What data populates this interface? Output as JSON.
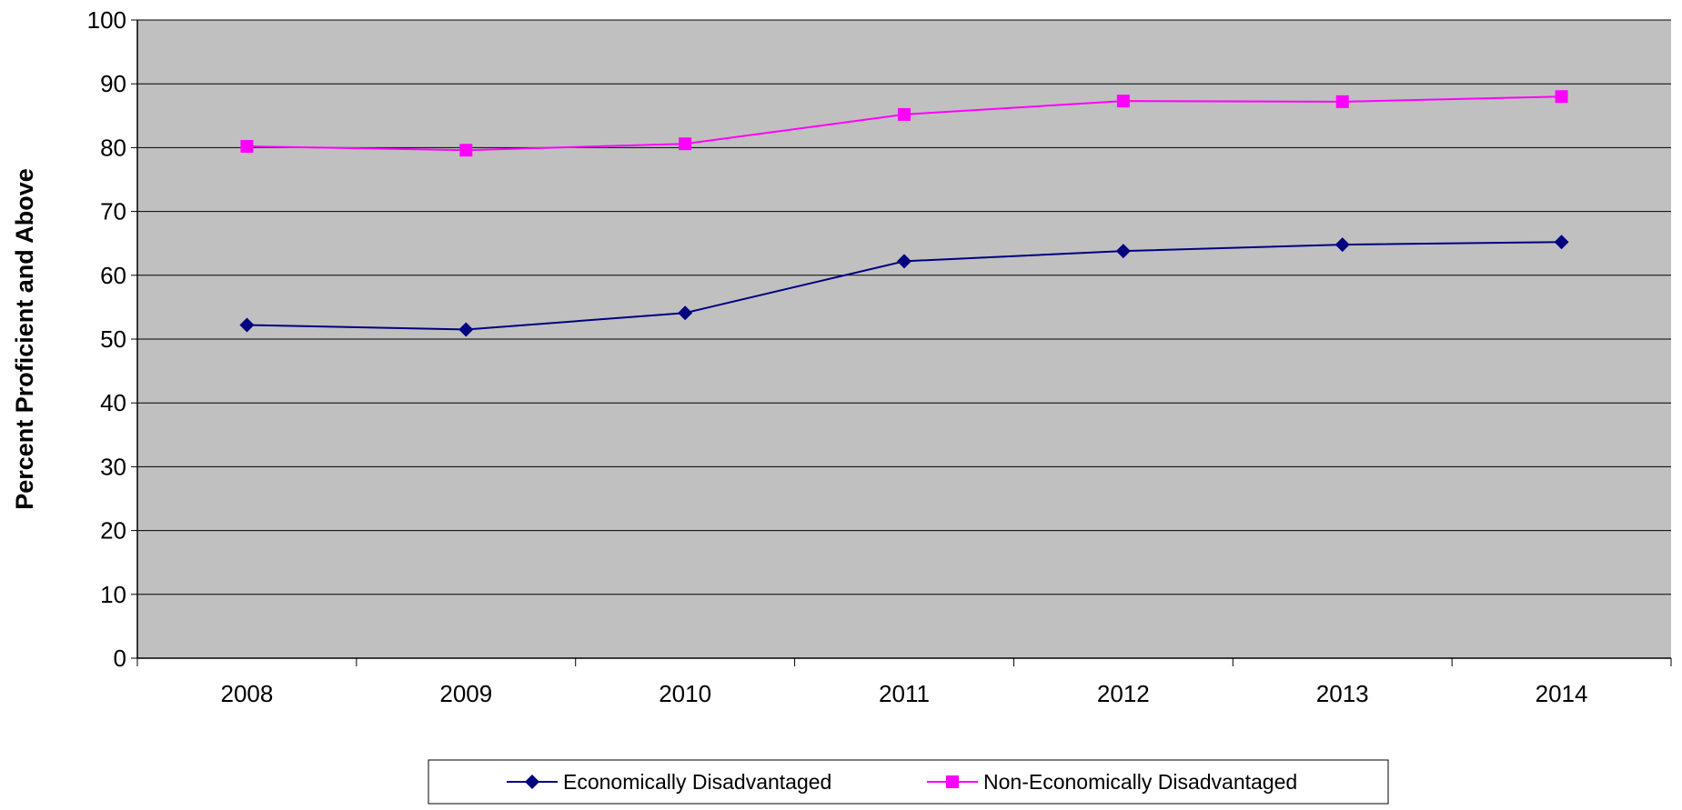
{
  "chart_data": {
    "type": "line",
    "categories": [
      "2008",
      "2009",
      "2010",
      "2011",
      "2012",
      "2013",
      "2014"
    ],
    "series": [
      {
        "name": "Economically Disadvantaged",
        "values": [
          52.2,
          51.5,
          54.1,
          62.2,
          63.8,
          64.8,
          65.2
        ],
        "color": "#000080",
        "marker": "diamond"
      },
      {
        "name": "Non-Economically Disadvantaged",
        "values": [
          80.2,
          79.6,
          80.6,
          85.2,
          87.3,
          87.2,
          88.0
        ],
        "color": "#FF00FF",
        "marker": "square"
      }
    ],
    "title": "",
    "xlabel": "",
    "ylabel": "Percent Proficient and Above",
    "ylim": [
      0,
      100
    ],
    "ytick_step": 10,
    "grid": "horizontal",
    "legend": "bottom",
    "plot_background": "#C0C0C0"
  }
}
